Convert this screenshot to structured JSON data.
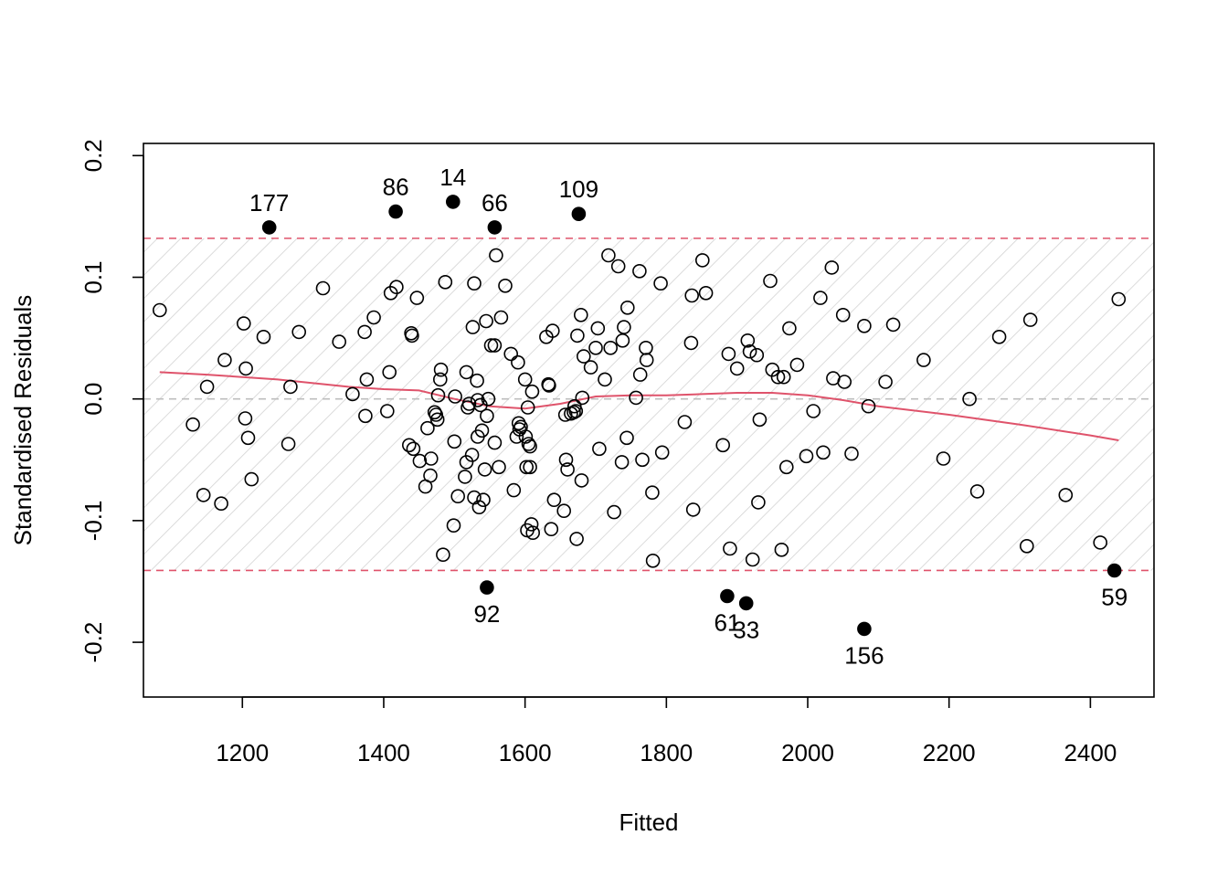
{
  "chart_data": {
    "type": "scatter",
    "title": "",
    "xlabel": "Fitted",
    "ylabel": "Standardised Residuals",
    "xlim": [
      1060,
      2490
    ],
    "ylim": [
      -0.245,
      0.21
    ],
    "x_ticks": [
      1200,
      1400,
      1600,
      1800,
      2000,
      2200,
      2400
    ],
    "x_tick_labels": [
      "1200",
      "1400",
      "1600",
      "1800",
      "2000",
      "2200",
      "2400"
    ],
    "y_ticks": [
      -0.2,
      -0.1,
      0.0,
      0.1,
      0.2
    ],
    "y_tick_labels": [
      "-0.2",
      "-0.1",
      "0.0",
      "0.1",
      "0.2"
    ],
    "grid": false,
    "band": {
      "upper": 0.132,
      "lower": -0.141,
      "pattern": "diagonal-hatch",
      "color": "#df536b"
    },
    "zero_line": {
      "y": 0.0,
      "color": "#bebebe",
      "style": "dashed"
    },
    "smoother": {
      "color": "#df536b",
      "x": [
        1083,
        1150,
        1250,
        1350,
        1400,
        1450,
        1500,
        1550,
        1600,
        1650,
        1700,
        1750,
        1800,
        1850,
        1900,
        1950,
        2000,
        2050,
        2100,
        2200,
        2300,
        2400,
        2440
      ],
      "y": [
        0.022,
        0.02,
        0.016,
        0.01,
        0.008,
        0.007,
        0.0,
        -0.006,
        -0.008,
        -0.004,
        0.002,
        0.003,
        0.003,
        0.004,
        0.005,
        0.005,
        0.003,
        -0.001,
        -0.006,
        -0.013,
        -0.021,
        -0.03,
        -0.034
      ]
    },
    "outliers": {
      "color": "#000000",
      "points": [
        {
          "label": "177",
          "x": 1238,
          "y": 0.141,
          "label_pos": "above"
        },
        {
          "label": "86",
          "x": 1417,
          "y": 0.154,
          "label_pos": "above"
        },
        {
          "label": "14",
          "x": 1498,
          "y": 0.162,
          "label_pos": "above"
        },
        {
          "label": "66",
          "x": 1557,
          "y": 0.141,
          "label_pos": "above"
        },
        {
          "label": "109",
          "x": 1676,
          "y": 0.152,
          "label_pos": "above"
        },
        {
          "label": "92",
          "x": 1546,
          "y": -0.155,
          "label_pos": "below"
        },
        {
          "label": "61",
          "x": 1886,
          "y": -0.162,
          "label_pos": "below"
        },
        {
          "label": "33",
          "x": 1913,
          "y": -0.168,
          "label_pos": "below"
        },
        {
          "label": "156",
          "x": 2080,
          "y": -0.189,
          "label_pos": "below"
        },
        {
          "label": "59",
          "x": 2434,
          "y": -0.141,
          "label_pos": "below"
        }
      ]
    },
    "points": [
      [
        1083,
        0.073
      ],
      [
        1130,
        -0.021
      ],
      [
        1145,
        -0.079
      ],
      [
        1150,
        0.01
      ],
      [
        1170,
        -0.086
      ],
      [
        1175,
        0.032
      ],
      [
        1202,
        0.062
      ],
      [
        1205,
        0.025
      ],
      [
        1204,
        -0.016
      ],
      [
        1208,
        -0.032
      ],
      [
        1213,
        -0.066
      ],
      [
        1230,
        0.051
      ],
      [
        1265,
        -0.037
      ],
      [
        1268,
        0.01
      ],
      [
        1280,
        0.055
      ],
      [
        1314,
        0.091
      ],
      [
        1337,
        0.047
      ],
      [
        1356,
        0.004
      ],
      [
        1374,
        -0.014
      ],
      [
        1376,
        0.016
      ],
      [
        1373,
        0.055
      ],
      [
        1386,
        0.067
      ],
      [
        1405,
        -0.01
      ],
      [
        1408,
        0.022
      ],
      [
        1410,
        0.087
      ],
      [
        1418,
        0.092
      ],
      [
        1436,
        -0.038
      ],
      [
        1439,
        0.054
      ],
      [
        1440,
        0.052
      ],
      [
        1442,
        -0.041
      ],
      [
        1447,
        0.083
      ],
      [
        1451,
        -0.051
      ],
      [
        1459,
        -0.072
      ],
      [
        1462,
        -0.024
      ],
      [
        1466,
        -0.063
      ],
      [
        1467,
        -0.049
      ],
      [
        1472,
        -0.011
      ],
      [
        1474,
        -0.013
      ],
      [
        1476,
        -0.017
      ],
      [
        1477,
        0.003
      ],
      [
        1480,
        0.016
      ],
      [
        1481,
        0.024
      ],
      [
        1484,
        -0.128
      ],
      [
        1487,
        0.096
      ],
      [
        1499,
        -0.104
      ],
      [
        1500,
        -0.035
      ],
      [
        1501,
        0.002
      ],
      [
        1505,
        -0.08
      ],
      [
        1515,
        -0.064
      ],
      [
        1517,
        0.022
      ],
      [
        1517,
        -0.052
      ],
      [
        1519,
        -0.007
      ],
      [
        1521,
        -0.004
      ],
      [
        1525,
        -0.046
      ],
      [
        1526,
        0.059
      ],
      [
        1528,
        0.095
      ],
      [
        1528,
        -0.081
      ],
      [
        1532,
        0.015
      ],
      [
        1533,
        -0.001
      ],
      [
        1533,
        -0.031
      ],
      [
        1535,
        -0.089
      ],
      [
        1537,
        -0.005
      ],
      [
        1539,
        -0.026
      ],
      [
        1541,
        -0.083
      ],
      [
        1543,
        -0.058
      ],
      [
        1545,
        0.064
      ],
      [
        1546,
        -0.014
      ],
      [
        1548,
        0.0
      ],
      [
        1552,
        0.044
      ],
      [
        1557,
        0.044
      ],
      [
        1557,
        -0.036
      ],
      [
        1559,
        0.118
      ],
      [
        1563,
        -0.056
      ],
      [
        1566,
        0.067
      ],
      [
        1572,
        0.093
      ],
      [
        1580,
        0.037
      ],
      [
        1584,
        -0.075
      ],
      [
        1588,
        -0.031
      ],
      [
        1590,
        0.03
      ],
      [
        1591,
        -0.02
      ],
      [
        1592,
        -0.025
      ],
      [
        1594,
        -0.023
      ],
      [
        1600,
        0.016
      ],
      [
        1601,
        -0.031
      ],
      [
        1602,
        -0.056
      ],
      [
        1603,
        -0.108
      ],
      [
        1604,
        -0.007
      ],
      [
        1605,
        -0.037
      ],
      [
        1607,
        -0.039
      ],
      [
        1607,
        -0.056
      ],
      [
        1609,
        -0.103
      ],
      [
        1610,
        0.006
      ],
      [
        1611,
        -0.11
      ],
      [
        1630,
        0.051
      ],
      [
        1633,
        0.012
      ],
      [
        1634,
        0.011
      ],
      [
        1637,
        -0.107
      ],
      [
        1639,
        0.056
      ],
      [
        1641,
        -0.083
      ],
      [
        1655,
        -0.092
      ],
      [
        1657,
        -0.013
      ],
      [
        1658,
        -0.05
      ],
      [
        1660,
        -0.058
      ],
      [
        1665,
        -0.012
      ],
      [
        1669,
        -0.011
      ],
      [
        1670,
        -0.006
      ],
      [
        1672,
        -0.01
      ],
      [
        1674,
        0.052
      ],
      [
        1673,
        -0.115
      ],
      [
        1679,
        0.069
      ],
      [
        1680,
        -0.067
      ],
      [
        1681,
        0.001
      ],
      [
        1683,
        0.035
      ],
      [
        1693,
        0.026
      ],
      [
        1700,
        0.042
      ],
      [
        1703,
        0.058
      ],
      [
        1705,
        -0.041
      ],
      [
        1713,
        0.016
      ],
      [
        1718,
        0.118
      ],
      [
        1721,
        0.042
      ],
      [
        1726,
        -0.093
      ],
      [
        1732,
        0.109
      ],
      [
        1737,
        -0.052
      ],
      [
        1738,
        0.048
      ],
      [
        1740,
        0.059
      ],
      [
        1744,
        -0.032
      ],
      [
        1745,
        0.075
      ],
      [
        1757,
        0.001
      ],
      [
        1762,
        0.105
      ],
      [
        1763,
        0.02
      ],
      [
        1766,
        -0.05
      ],
      [
        1771,
        0.042
      ],
      [
        1772,
        0.032
      ],
      [
        1780,
        -0.077
      ],
      [
        1781,
        -0.133
      ],
      [
        1792,
        0.095
      ],
      [
        1794,
        -0.044
      ],
      [
        1826,
        -0.019
      ],
      [
        1835,
        0.046
      ],
      [
        1836,
        0.085
      ],
      [
        1838,
        -0.091
      ],
      [
        1851,
        0.114
      ],
      [
        1856,
        0.087
      ],
      [
        1880,
        -0.038
      ],
      [
        1888,
        0.037
      ],
      [
        1890,
        -0.123
      ],
      [
        1900,
        0.025
      ],
      [
        1915,
        0.048
      ],
      [
        1918,
        0.039
      ],
      [
        1922,
        -0.132
      ],
      [
        1928,
        0.036
      ],
      [
        1930,
        -0.085
      ],
      [
        1932,
        -0.017
      ],
      [
        1947,
        0.097
      ],
      [
        1950,
        0.024
      ],
      [
        1958,
        0.018
      ],
      [
        1963,
        -0.124
      ],
      [
        1966,
        0.018
      ],
      [
        1970,
        -0.056
      ],
      [
        1974,
        0.058
      ],
      [
        1985,
        0.028
      ],
      [
        1998,
        -0.047
      ],
      [
        2008,
        -0.01
      ],
      [
        2018,
        0.083
      ],
      [
        2022,
        -0.044
      ],
      [
        2034,
        0.108
      ],
      [
        2036,
        0.017
      ],
      [
        2050,
        0.069
      ],
      [
        2052,
        0.014
      ],
      [
        2062,
        -0.045
      ],
      [
        2080,
        0.06
      ],
      [
        2086,
        -0.006
      ],
      [
        2110,
        0.014
      ],
      [
        2121,
        0.061
      ],
      [
        2164,
        0.032
      ],
      [
        2192,
        -0.049
      ],
      [
        2229,
        0.0
      ],
      [
        2240,
        -0.076
      ],
      [
        2271,
        0.051
      ],
      [
        2310,
        -0.121
      ],
      [
        2315,
        0.065
      ],
      [
        2365,
        -0.079
      ],
      [
        2414,
        -0.118
      ],
      [
        2440,
        0.082
      ]
    ]
  }
}
